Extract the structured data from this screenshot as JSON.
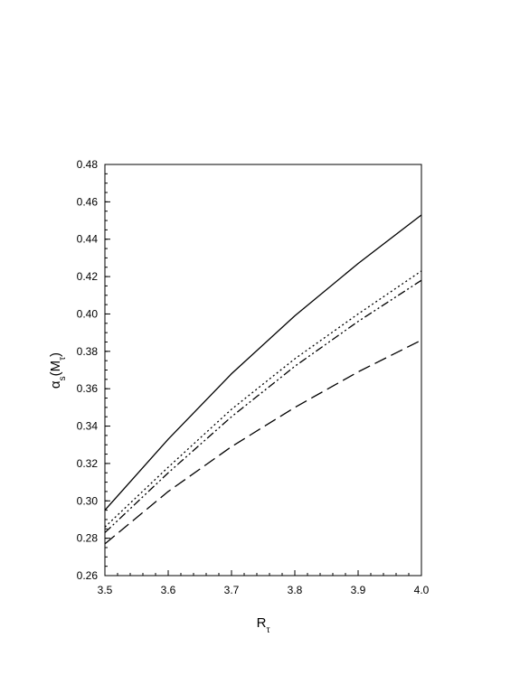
{
  "chart_data": {
    "type": "line",
    "xlabel": [
      {
        "text": "R"
      },
      {
        "text": "τ",
        "sub": true
      }
    ],
    "ylabel": [
      {
        "text": "α"
      },
      {
        "text": "s",
        "sub": true
      },
      {
        "text": "(M"
      },
      {
        "text": "τ",
        "sub": true
      },
      {
        "text": ")"
      }
    ],
    "x": [
      3.5,
      3.6,
      3.7,
      3.8,
      3.9,
      4.0
    ],
    "series": [
      {
        "color": "#000000",
        "dash": "solid",
        "values": [
          0.295,
          0.333,
          0.368,
          0.399,
          0.427,
          0.453
        ]
      },
      {
        "color": "#000000",
        "dash": "dotted",
        "values": [
          0.286,
          0.318,
          0.349,
          0.376,
          0.4,
          0.423
        ]
      },
      {
        "color": "#000000",
        "dash": "dash-dot-dot",
        "values": [
          0.283,
          0.315,
          0.345,
          0.372,
          0.396,
          0.418
        ]
      },
      {
        "color": "#000000",
        "dash": "dashed",
        "values": [
          0.277,
          0.305,
          0.329,
          0.35,
          0.369,
          0.386
        ]
      }
    ],
    "xlim": [
      3.5,
      4.0
    ],
    "ylim": [
      0.26,
      0.48
    ],
    "xticks": [
      3.5,
      3.6,
      3.7,
      3.8,
      3.9,
      {
        "value": 4.0,
        "label": "4.0"
      }
    ],
    "yticks": [
      0.26,
      0.28,
      {
        "value": 0.3,
        "label": "0.30"
      },
      0.32,
      0.34,
      0.36,
      0.38,
      {
        "value": 0.4,
        "label": "0.40"
      },
      0.42,
      0.44,
      0.46,
      0.48
    ],
    "minor_ticks": {
      "x": 0.02,
      "y": 0.005
    },
    "grid": false
  }
}
